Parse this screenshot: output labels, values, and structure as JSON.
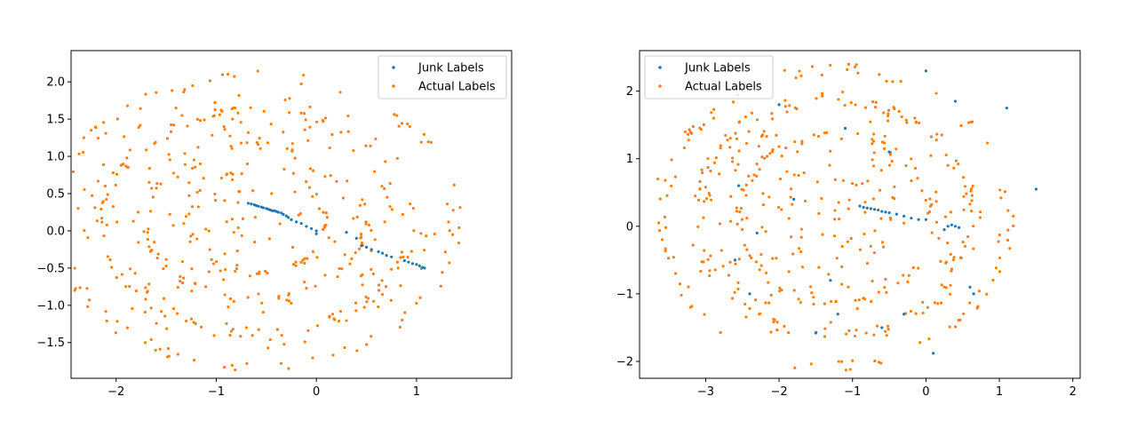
{
  "colors": {
    "junk": "#1f77b4",
    "actual": "#ff7f0e",
    "axes": "#000000",
    "legend_border": "#cccccc"
  },
  "legend": {
    "junk": "Junk Labels",
    "actual": "Actual Labels"
  },
  "chart_data": [
    {
      "type": "scatter",
      "xlim": [
        -2.45,
        1.95
      ],
      "ylim": [
        -1.98,
        2.42
      ],
      "xticks": [
        -2,
        -1,
        0,
        1
      ],
      "yticks": [
        -1.5,
        -1.0,
        -0.5,
        0.0,
        0.5,
        1.0,
        1.5,
        2.0
      ],
      "xtick_labels": [
        "−2",
        "−1",
        "0",
        "1"
      ],
      "ytick_labels": [
        "−1.5",
        "−1.0",
        "−0.5",
        "0.0",
        "0.5",
        "1.0",
        "1.5",
        "2.0"
      ],
      "grid": false,
      "legend_position": "upper right",
      "series": [
        {
          "name": "Junk Labels",
          "color": "#1f77b4",
          "points": [
            [
              -0.68,
              0.37
            ],
            [
              -0.65,
              0.36
            ],
            [
              -0.62,
              0.35
            ],
            [
              -0.6,
              0.34
            ],
            [
              -0.58,
              0.33
            ],
            [
              -0.55,
              0.32
            ],
            [
              -0.53,
              0.31
            ],
            [
              -0.5,
              0.3
            ],
            [
              -0.48,
              0.29
            ],
            [
              -0.46,
              0.28
            ],
            [
              -0.44,
              0.27
            ],
            [
              -0.42,
              0.27
            ],
            [
              -0.4,
              0.26
            ],
            [
              -0.38,
              0.25
            ],
            [
              -0.35,
              0.24
            ],
            [
              -0.33,
              0.22
            ],
            [
              -0.3,
              0.2
            ],
            [
              -0.28,
              0.18
            ],
            [
              -0.25,
              0.15
            ],
            [
              -0.2,
              0.12
            ],
            [
              -0.15,
              0.1
            ],
            [
              -0.1,
              0.06
            ],
            [
              -0.05,
              0.03
            ],
            [
              0.0,
              0.0
            ],
            [
              0.0,
              -0.04
            ],
            [
              0.3,
              -0.02
            ],
            [
              0.4,
              -0.1
            ],
            [
              0.45,
              -0.2
            ],
            [
              0.5,
              -0.22
            ],
            [
              0.55,
              -0.25
            ],
            [
              0.62,
              -0.28
            ],
            [
              0.66,
              -0.3
            ],
            [
              0.7,
              -0.33
            ],
            [
              0.75,
              -0.35
            ],
            [
              0.88,
              -0.4
            ],
            [
              0.92,
              -0.42
            ],
            [
              0.96,
              -0.44
            ],
            [
              1.0,
              -0.45
            ],
            [
              1.03,
              -0.47
            ],
            [
              1.06,
              -0.49
            ],
            [
              1.08,
              -0.5
            ]
          ]
        },
        {
          "name": "Actual Labels",
          "color": "#ff7f0e",
          "generated": true,
          "rings": [
            [
              2.0,
              1.96,
              100
            ],
            [
              1.55,
              1.5,
              80
            ],
            [
              1.1,
              1.05,
              60
            ],
            [
              0.7,
              0.68,
              40
            ]
          ],
          "scatter_count": 220,
          "scatter_r": 1.8
        }
      ]
    },
    {
      "type": "scatter",
      "xlim": [
        -3.9,
        2.1
      ],
      "ylim": [
        -2.25,
        2.6
      ],
      "xticks": [
        -3,
        -2,
        -1,
        0,
        1,
        2
      ],
      "yticks": [
        -2,
        -1,
        0,
        1,
        2
      ],
      "xtick_labels": [
        "−3",
        "−2",
        "−1",
        "0",
        "1",
        "2"
      ],
      "ytick_labels": [
        "−2",
        "−1",
        "0",
        "1",
        "2"
      ],
      "grid": false,
      "legend_position": "upper left",
      "series": [
        {
          "name": "Junk Labels",
          "color": "#1f77b4",
          "points": [
            [
              -0.9,
              0.3
            ],
            [
              -0.85,
              0.28
            ],
            [
              -0.8,
              0.27
            ],
            [
              -0.75,
              0.26
            ],
            [
              -0.7,
              0.25
            ],
            [
              -0.65,
              0.24
            ],
            [
              -0.6,
              0.22
            ],
            [
              -0.55,
              0.21
            ],
            [
              -0.5,
              0.2
            ],
            [
              -0.4,
              0.18
            ],
            [
              -0.3,
              0.15
            ],
            [
              -0.2,
              0.12
            ],
            [
              -0.1,
              0.1
            ],
            [
              0.0,
              0.1
            ],
            [
              0.3,
              0.0
            ],
            [
              0.35,
              0.02
            ],
            [
              0.4,
              0.0
            ],
            [
              0.45,
              -0.02
            ],
            [
              0.25,
              -0.05
            ],
            [
              0.6,
              -0.9
            ],
            [
              0.65,
              -1.0
            ],
            [
              -1.1,
              1.45
            ],
            [
              -0.5,
              1.1
            ],
            [
              -1.8,
              0.4
            ],
            [
              -2.0,
              1.8
            ],
            [
              -2.4,
              -1.0
            ],
            [
              -2.3,
              -0.1
            ],
            [
              -2.55,
              0.6
            ],
            [
              -1.2,
              -1.3
            ],
            [
              -0.6,
              -1.5
            ],
            [
              0.0,
              2.3
            ],
            [
              0.4,
              1.85
            ],
            [
              1.1,
              1.75
            ],
            [
              1.5,
              0.55
            ],
            [
              -1.5,
              -1.58
            ],
            [
              0.1,
              -1.88
            ],
            [
              -2.6,
              -0.5
            ],
            [
              -1.3,
              -0.8
            ],
            [
              -0.3,
              -1.3
            ]
          ]
        },
        {
          "name": "Actual Labels",
          "color": "#ff7f0e",
          "generated": true,
          "rings": [
            [
              2.35,
              2.2,
              100
            ],
            [
              1.85,
              1.75,
              80
            ],
            [
              1.3,
              1.25,
              60
            ]
          ],
          "scatter_count": 240,
          "scatter_r": 2.0,
          "extra_points": [
            [
              -3.65,
              0.7
            ],
            [
              -3.55,
              0.68
            ],
            [
              -3.0,
              0.58
            ]
          ]
        }
      ]
    }
  ]
}
